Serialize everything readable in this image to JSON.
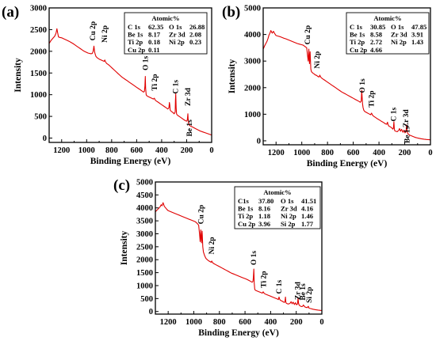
{
  "figure": {
    "panels": [
      "(a)",
      "(b)",
      "(c)"
    ]
  },
  "colors": {
    "spectrum": "#e00000",
    "highlight": "#e00000",
    "axis": "#000000"
  },
  "chart_data": [
    {
      "type": "line",
      "panel": "(a)",
      "xlabel": "Binding Energy (eV)",
      "ylabel": "Intensity",
      "xlim": [
        1300,
        0
      ],
      "ylim": [
        -100,
        3000
      ],
      "xticks": [
        1200,
        1000,
        800,
        600,
        400,
        200,
        0
      ],
      "yticks": [
        0,
        500,
        1000,
        1500,
        2000,
        2500,
        3000
      ],
      "x": [
        1300,
        1285,
        1270,
        1255,
        1245,
        1238,
        1232,
        1225,
        1215,
        1200,
        1185,
        1170,
        1155,
        1140,
        1125,
        1110,
        1095,
        1080,
        1065,
        1050,
        1035,
        1020,
        1005,
        990,
        975,
        965,
        955,
        948,
        942,
        936,
        930,
        925,
        915,
        900,
        885,
        870,
        860,
        855,
        850,
        840,
        825,
        810,
        795,
        780,
        765,
        750,
        735,
        720,
        705,
        690,
        675,
        660,
        645,
        630,
        615,
        600,
        585,
        570,
        555,
        545,
        538,
        534,
        531,
        528,
        524,
        520,
        510,
        495,
        480,
        465,
        460,
        455,
        450,
        440,
        425,
        410,
        395,
        380,
        365,
        350,
        342,
        338,
        335,
        332,
        328,
        320,
        310,
        300,
        292,
        290,
        287,
        284,
        281,
        278,
        270,
        260,
        250,
        240,
        230,
        220,
        210,
        200,
        195,
        190,
        187,
        183,
        180,
        170,
        150,
        130,
        110,
        90,
        70,
        50,
        30,
        10,
        0
      ],
      "y": [
        2180,
        2250,
        2300,
        2350,
        2420,
        2520,
        2430,
        2330,
        2320,
        2310,
        2290,
        2270,
        2250,
        2230,
        2205,
        2180,
        2150,
        2120,
        2090,
        2060,
        2030,
        2000,
        1980,
        1960,
        1950,
        1945,
        1950,
        2000,
        2120,
        1980,
        1920,
        1880,
        1850,
        1820,
        1800,
        1780,
        1770,
        1800,
        1760,
        1720,
        1690,
        1650,
        1610,
        1570,
        1530,
        1490,
        1450,
        1410,
        1380,
        1350,
        1320,
        1290,
        1260,
        1230,
        1200,
        1170,
        1140,
        1110,
        1080,
        1060,
        1080,
        1200,
        1420,
        1150,
        1000,
        980,
        960,
        940,
        920,
        900,
        920,
        900,
        870,
        850,
        820,
        790,
        760,
        730,
        700,
        670,
        700,
        820,
        760,
        650,
        630,
        610,
        590,
        560,
        600,
        860,
        1020,
        700,
        560,
        540,
        520,
        500,
        480,
        460,
        440,
        420,
        400,
        390,
        420,
        560,
        380,
        330,
        300,
        280,
        250,
        220,
        190,
        160,
        140,
        120,
        100,
        80,
        70
      ],
      "peak_labels": [
        "Cu 2p",
        "Ni 2p",
        "O 1s",
        "Ti 2p",
        "C 1s",
        "Zr 3d",
        "Be 1s"
      ],
      "inset": {
        "title": "Atomic%",
        "rows": [
          [
            {
              "el": "C 1s",
              "val": "62.35"
            },
            {
              "el": "O 1s",
              "val": "26.88"
            }
          ],
          [
            {
              "el": "Be 1s",
              "val": "8.17"
            },
            {
              "el": "Zr 3d",
              "val": "2.08"
            }
          ],
          [
            {
              "el": "Ti 2p",
              "val": "0.18"
            },
            {
              "el": "Ni 2p",
              "val": "0.23"
            }
          ],
          [
            {
              "el": "Cu 2p",
              "val": "0.11"
            }
          ]
        ]
      }
    },
    {
      "type": "line",
      "panel": "(b)",
      "xlabel": "Binding Energy (eV)",
      "ylabel": "Intensity",
      "xlim": [
        1300,
        0
      ],
      "ylim": [
        -150,
        5000
      ],
      "xticks": [
        1200,
        1000,
        800,
        600,
        400,
        200,
        0
      ],
      "yticks": [
        0,
        1000,
        2000,
        3000,
        4000,
        5000
      ],
      "x": [
        1300,
        1290,
        1280,
        1270,
        1262,
        1255,
        1248,
        1240,
        1230,
        1220,
        1210,
        1200,
        1185,
        1170,
        1155,
        1140,
        1125,
        1110,
        1095,
        1080,
        1065,
        1050,
        1035,
        1020,
        1005,
        990,
        978,
        970,
        962,
        955,
        950,
        945,
        940,
        935,
        930,
        925,
        915,
        905,
        895,
        885,
        875,
        865,
        860,
        855,
        850,
        840,
        825,
        810,
        795,
        780,
        765,
        750,
        735,
        720,
        705,
        690,
        675,
        660,
        645,
        630,
        615,
        600,
        585,
        570,
        555,
        545,
        538,
        534,
        531,
        528,
        524,
        518,
        510,
        495,
        480,
        465,
        458,
        450,
        440,
        425,
        410,
        395,
        380,
        365,
        350,
        340,
        334,
        330,
        325,
        318,
        310,
        300,
        292,
        288,
        284,
        281,
        278,
        270,
        258,
        246,
        240,
        232,
        224,
        214,
        206,
        198,
        190,
        186,
        182,
        178,
        174,
        168,
        160,
        145,
        130,
        115,
        100,
        85,
        70,
        50,
        30,
        10,
        0
      ],
      "y": [
        3450,
        3560,
        3650,
        3750,
        3860,
        3980,
        4040,
        4150,
        4050,
        4120,
        4030,
        3960,
        3940,
        3920,
        3890,
        3860,
        3840,
        3810,
        3780,
        3750,
        3720,
        3690,
        3660,
        3640,
        3620,
        3600,
        3560,
        3530,
        3500,
        3200,
        3000,
        3450,
        2900,
        3350,
        2700,
        2600,
        2550,
        2520,
        2480,
        2460,
        2420,
        2400,
        2470,
        2420,
        2380,
        2340,
        2290,
        2240,
        2190,
        2140,
        2090,
        2040,
        1990,
        1940,
        1890,
        1840,
        1800,
        1760,
        1720,
        1680,
        1640,
        1600,
        1560,
        1520,
        1480,
        1450,
        1500,
        1900,
        1650,
        1400,
        1250,
        1150,
        1100,
        1060,
        1020,
        980,
        1040,
        960,
        920,
        870,
        820,
        780,
        730,
        690,
        640,
        620,
        700,
        620,
        560,
        540,
        520,
        480,
        440,
        480,
        720,
        460,
        380,
        360,
        340,
        400,
        460,
        360,
        430,
        320,
        400,
        300,
        340,
        600,
        380,
        300,
        260,
        240,
        210,
        180,
        150,
        125,
        105,
        90,
        75,
        60,
        50,
        40,
        35
      ],
      "peak_labels": [
        "Cu 2p",
        "Ni 2p",
        "O 1s",
        "Ti 2p",
        "C 1s",
        "Zr 3d",
        "Be 1s"
      ],
      "inset": {
        "title": "Atomic%",
        "rows": [
          [
            {
              "el": "C 1s",
              "val": "30.85"
            },
            {
              "el": "O 1s",
              "val": "47.85"
            }
          ],
          [
            {
              "el": "Be 1s",
              "val": "8.58"
            },
            {
              "el": "Zr 3d",
              "val": "3.91"
            }
          ],
          [
            {
              "el": "Ti 2p",
              "val": "2.72"
            },
            {
              "el": "Ni 2p",
              "val": "1.43"
            }
          ],
          [
            {
              "el": "Cu 2p",
              "val": "4.66"
            }
          ]
        ]
      }
    },
    {
      "type": "line",
      "panel": "(c)",
      "xlabel": "Binding Energy (eV)",
      "ylabel": "Intensity",
      "xlim": [
        1300,
        0
      ],
      "ylim": [
        -100,
        5000
      ],
      "xticks": [
        1200,
        1000,
        800,
        600,
        400,
        200,
        0
      ],
      "yticks": [
        0,
        500,
        1000,
        1500,
        2000,
        2500,
        3000,
        3500,
        4000,
        4500,
        5000
      ],
      "x": [
        1300,
        1290,
        1280,
        1270,
        1262,
        1255,
        1248,
        1240,
        1230,
        1220,
        1210,
        1200,
        1185,
        1170,
        1155,
        1140,
        1125,
        1110,
        1095,
        1080,
        1065,
        1050,
        1035,
        1020,
        1005,
        990,
        978,
        970,
        962,
        955,
        950,
        945,
        940,
        935,
        930,
        925,
        915,
        905,
        895,
        885,
        875,
        865,
        860,
        855,
        850,
        840,
        825,
        810,
        795,
        780,
        765,
        750,
        735,
        720,
        705,
        690,
        675,
        660,
        645,
        630,
        615,
        600,
        585,
        570,
        555,
        545,
        538,
        534,
        531,
        528,
        524,
        518,
        510,
        495,
        480,
        465,
        458,
        450,
        440,
        425,
        410,
        395,
        380,
        365,
        350,
        340,
        334,
        330,
        325,
        318,
        310,
        300,
        292,
        288,
        284,
        281,
        278,
        270,
        258,
        246,
        240,
        232,
        224,
        214,
        206,
        198,
        190,
        186,
        182,
        178,
        174,
        168,
        160,
        150,
        145,
        130,
        115,
        105,
        100,
        85,
        70,
        50,
        30,
        10,
        0
      ],
      "y": [
        3850,
        3900,
        3950,
        4000,
        4050,
        4120,
        4080,
        4200,
        4060,
        4000,
        3940,
        3890,
        3860,
        3830,
        3800,
        3770,
        3740,
        3710,
        3680,
        3650,
        3620,
        3590,
        3560,
        3530,
        3500,
        3470,
        3420,
        3380,
        3330,
        3000,
        2700,
        3150,
        2650,
        3100,
        2500,
        2300,
        2150,
        2050,
        2000,
        1960,
        1930,
        1900,
        1950,
        1900,
        1870,
        1840,
        1800,
        1760,
        1720,
        1680,
        1640,
        1600,
        1560,
        1520,
        1480,
        1450,
        1420,
        1390,
        1360,
        1330,
        1300,
        1270,
        1240,
        1200,
        1160,
        1130,
        1160,
        1350,
        1640,
        1100,
        850,
        820,
        800,
        770,
        740,
        710,
        760,
        700,
        670,
        640,
        610,
        580,
        550,
        520,
        490,
        460,
        560,
        480,
        440,
        420,
        400,
        370,
        350,
        390,
        560,
        360,
        320,
        300,
        290,
        330,
        380,
        300,
        360,
        270,
        340,
        260,
        290,
        520,
        320,
        260,
        230,
        210,
        190,
        200,
        250,
        170,
        150,
        200,
        130,
        110,
        90,
        70,
        55,
        45,
        40
      ],
      "peak_labels": [
        "Cu 2p",
        "Ni 2p",
        "O 1s",
        "Ti 2p",
        "C 1s",
        "Zr 3d",
        "Be 1s",
        "Si 2p"
      ],
      "inset": {
        "title": "Atomic%",
        "rows": [
          [
            {
              "el": "C1s",
              "val": "37.80"
            },
            {
              "el": "O 1s",
              "val": "41.51"
            }
          ],
          [
            {
              "el": "Be 1s",
              "val": "8.16"
            },
            {
              "el": "Zr 3d",
              "val": "4.16"
            }
          ],
          [
            {
              "el": "Ti 2p",
              "val": "1.18"
            },
            {
              "el": "Ni 2p",
              "val": "1.46"
            }
          ],
          [
            {
              "el": "Cu 2p",
              "val": "3.96"
            },
            {
              "el": "Si 2p",
              "val": "1.77",
              "highlight": true
            }
          ]
        ]
      }
    }
  ]
}
